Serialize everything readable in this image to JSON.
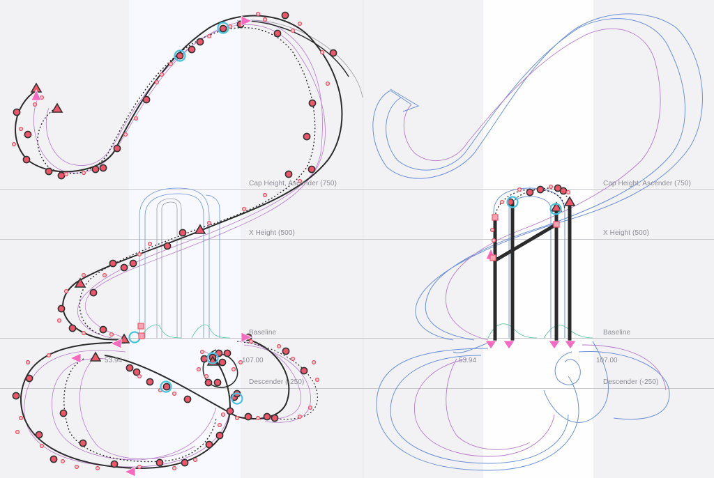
{
  "metrics": {
    "cap_height_label": "Cap Height, Ascender (750)",
    "x_height_label": "X Height (500)",
    "baseline_label": "Baseline",
    "descender_label": "Descender (-250)"
  },
  "sidebearings": {
    "left_value": "53.94",
    "right_value": "107.00"
  },
  "views": {
    "left": {
      "mode": "outline-edit",
      "glyph": "swash-A"
    },
    "right": {
      "mode": "stem-edit",
      "glyph": "swash-A"
    }
  },
  "colors": {
    "background": "#f2f2f4",
    "glyph_band": "#f8f9fe",
    "node_fill": "#f0566a",
    "node_stroke": "#333333",
    "handle_pink": "#f66bc0",
    "selection_cyan": "#47c3e0",
    "outline_blue": "#6b8fd6",
    "outline_purple": "#b47ac9",
    "stroke_dark": "#2b2b2b",
    "metric_line": "#c8c8cc",
    "label_gray": "#8c8c96"
  },
  "icons": {
    "corner_node": "triangle-node-icon",
    "smooth_node": "circle-node-icon",
    "start_node": "start-arrow-icon",
    "off_curve": "handle-dot-icon"
  }
}
